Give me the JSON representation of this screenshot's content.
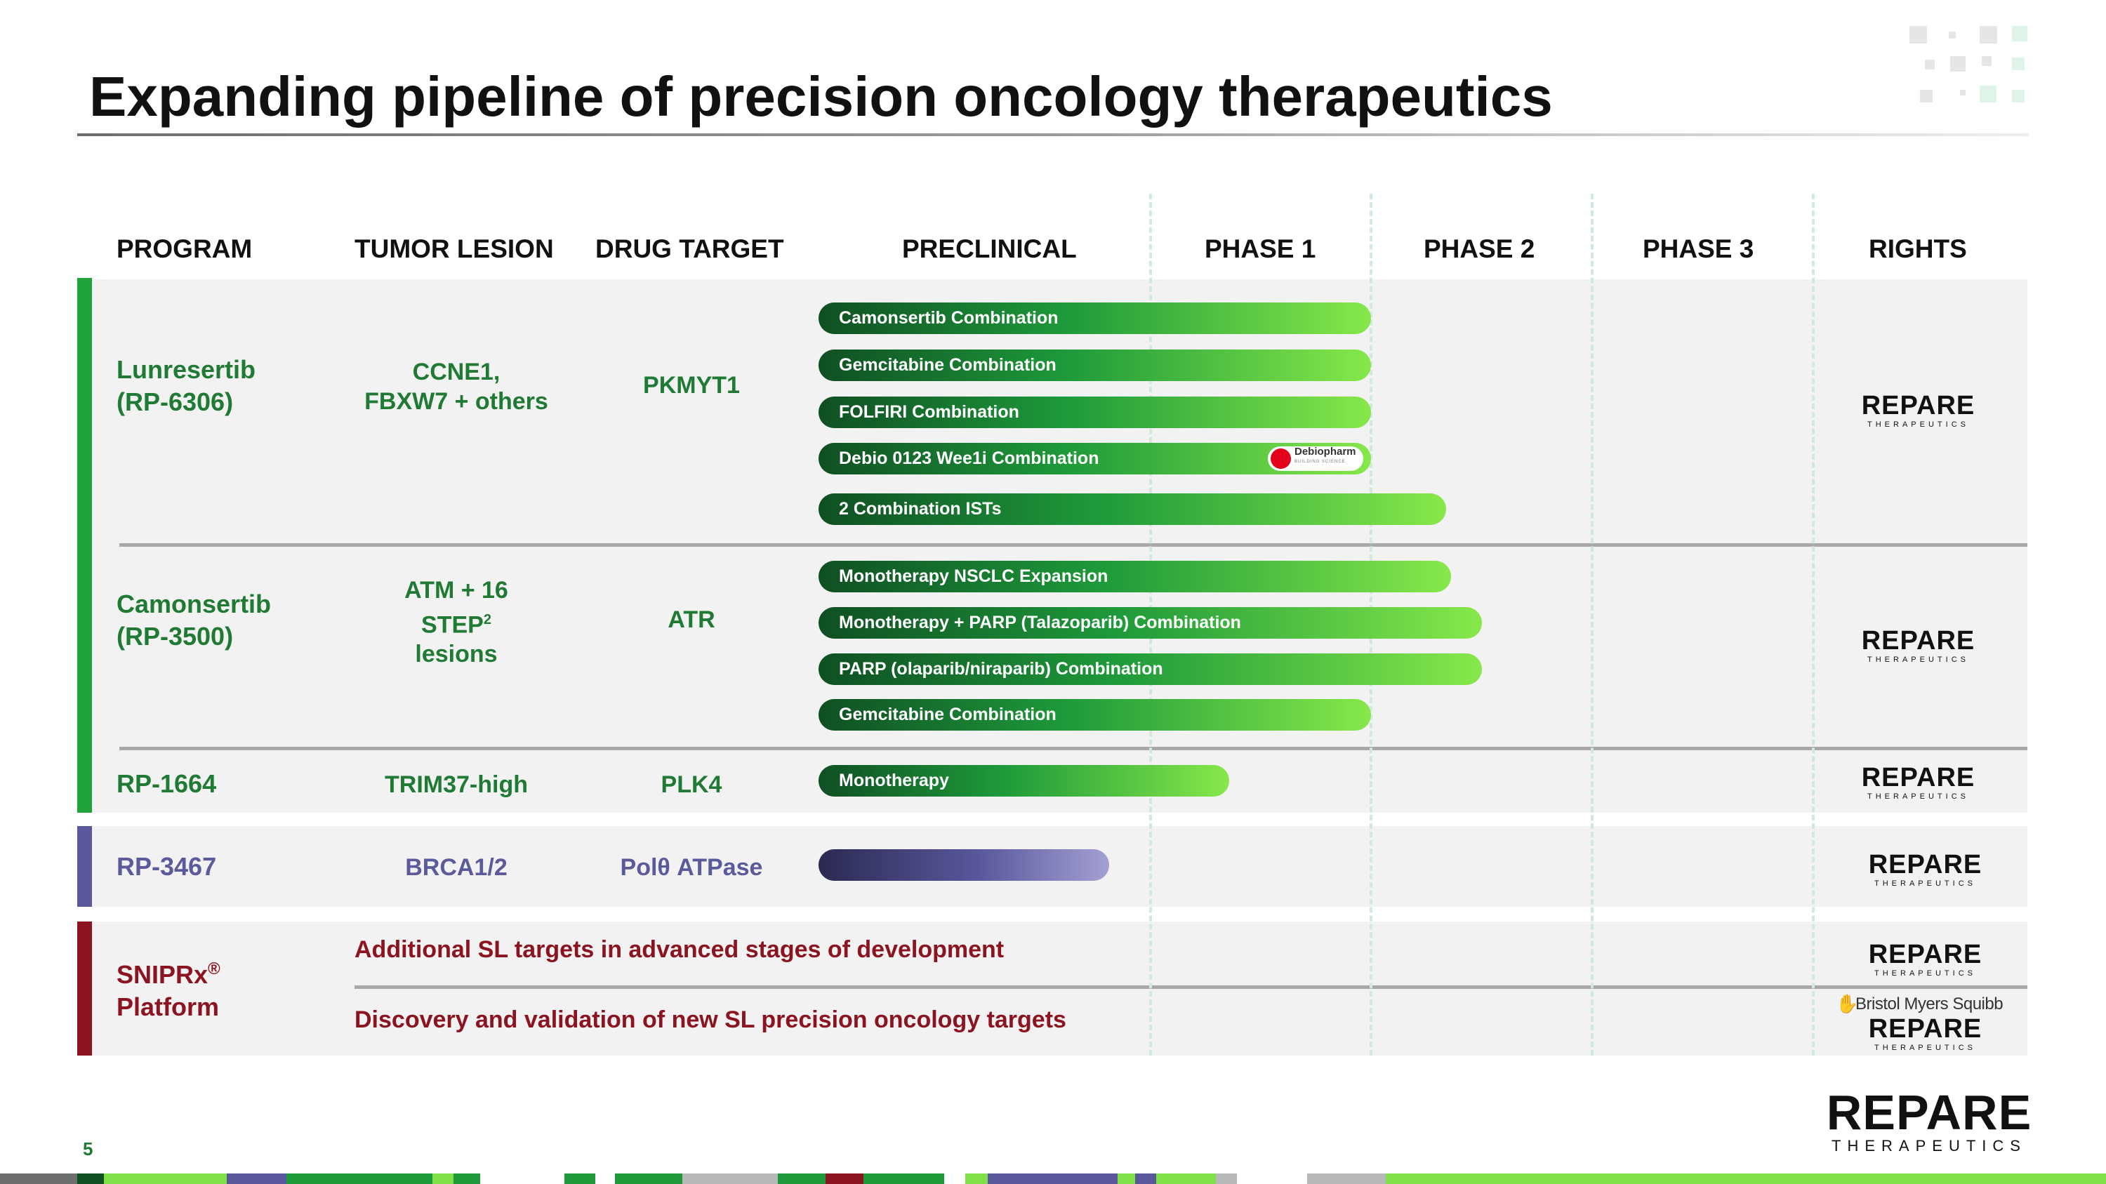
{
  "title": "Expanding pipeline of precision oncology therapeutics",
  "headers": {
    "program": "PROGRAM",
    "tumor_lesion": "TUMOR LESION",
    "drug_target": "DRUG TARGET",
    "preclinical": "PRECLINICAL",
    "phase1": "PHASE 1",
    "phase2": "PHASE 2",
    "phase3": "PHASE 3",
    "rights": "RIGHTS"
  },
  "programs": {
    "lunresertib": {
      "name_line1": "Lunresertib",
      "name_line2": "(RP-6306)",
      "lesion_line1": "CCNE1,",
      "lesion_line2": "FBXW7 + others",
      "target": "PKMYT1",
      "bars": [
        {
          "label": "Camonsertib Combination"
        },
        {
          "label": "Gemcitabine Combination"
        },
        {
          "label": "FOLFIRI Combination"
        },
        {
          "label": "Debio 0123 Wee1i Combination"
        },
        {
          "label": "2 Combination ISTs"
        }
      ],
      "partner_logo": "Debiopharm",
      "partner_sub": "BUILDING SCIENCE"
    },
    "camonsertib": {
      "name_line1": "Camonsertib",
      "name_line2": "(RP-3500)",
      "lesion_line1": "ATM + 16",
      "lesion_line2": "STEP",
      "lesion_sup": "2",
      "lesion_line3": "lesions",
      "target": "ATR",
      "bars": [
        {
          "label": "Monotherapy NSCLC Expansion"
        },
        {
          "label": "Monotherapy + PARP (Talazoparib) Combination"
        },
        {
          "label": "PARP (olaparib/niraparib) Combination"
        },
        {
          "label": "Gemcitabine Combination"
        }
      ]
    },
    "rp1664": {
      "name": "RP-1664",
      "lesion": "TRIM37-high",
      "target": "PLK4",
      "bars": [
        {
          "label": "Monotherapy"
        }
      ]
    },
    "rp3467": {
      "name": "RP-3467",
      "lesion": "BRCA1/2",
      "target": "Polθ ATPase"
    },
    "sniprx": {
      "name_line1": "SNIPRx",
      "name_sup": "®",
      "name_line2": "Platform",
      "line1": "Additional SL targets in advanced stages of development",
      "line2": "Discovery and validation of new SL precision oncology targets"
    }
  },
  "rights": {
    "repare_word": "REPARE",
    "repare_sub": "THERAPEUTICS",
    "partner": "Bristol Myers Squibb"
  },
  "footer": {
    "page_number": "5",
    "logo_word": "REPARE",
    "logo_sub": "THERAPEUTICS"
  },
  "colors": {
    "green": "#1f7a33",
    "purple": "#5a5a9c",
    "maroon": "#8c1420",
    "band": "#f2f2f2"
  }
}
